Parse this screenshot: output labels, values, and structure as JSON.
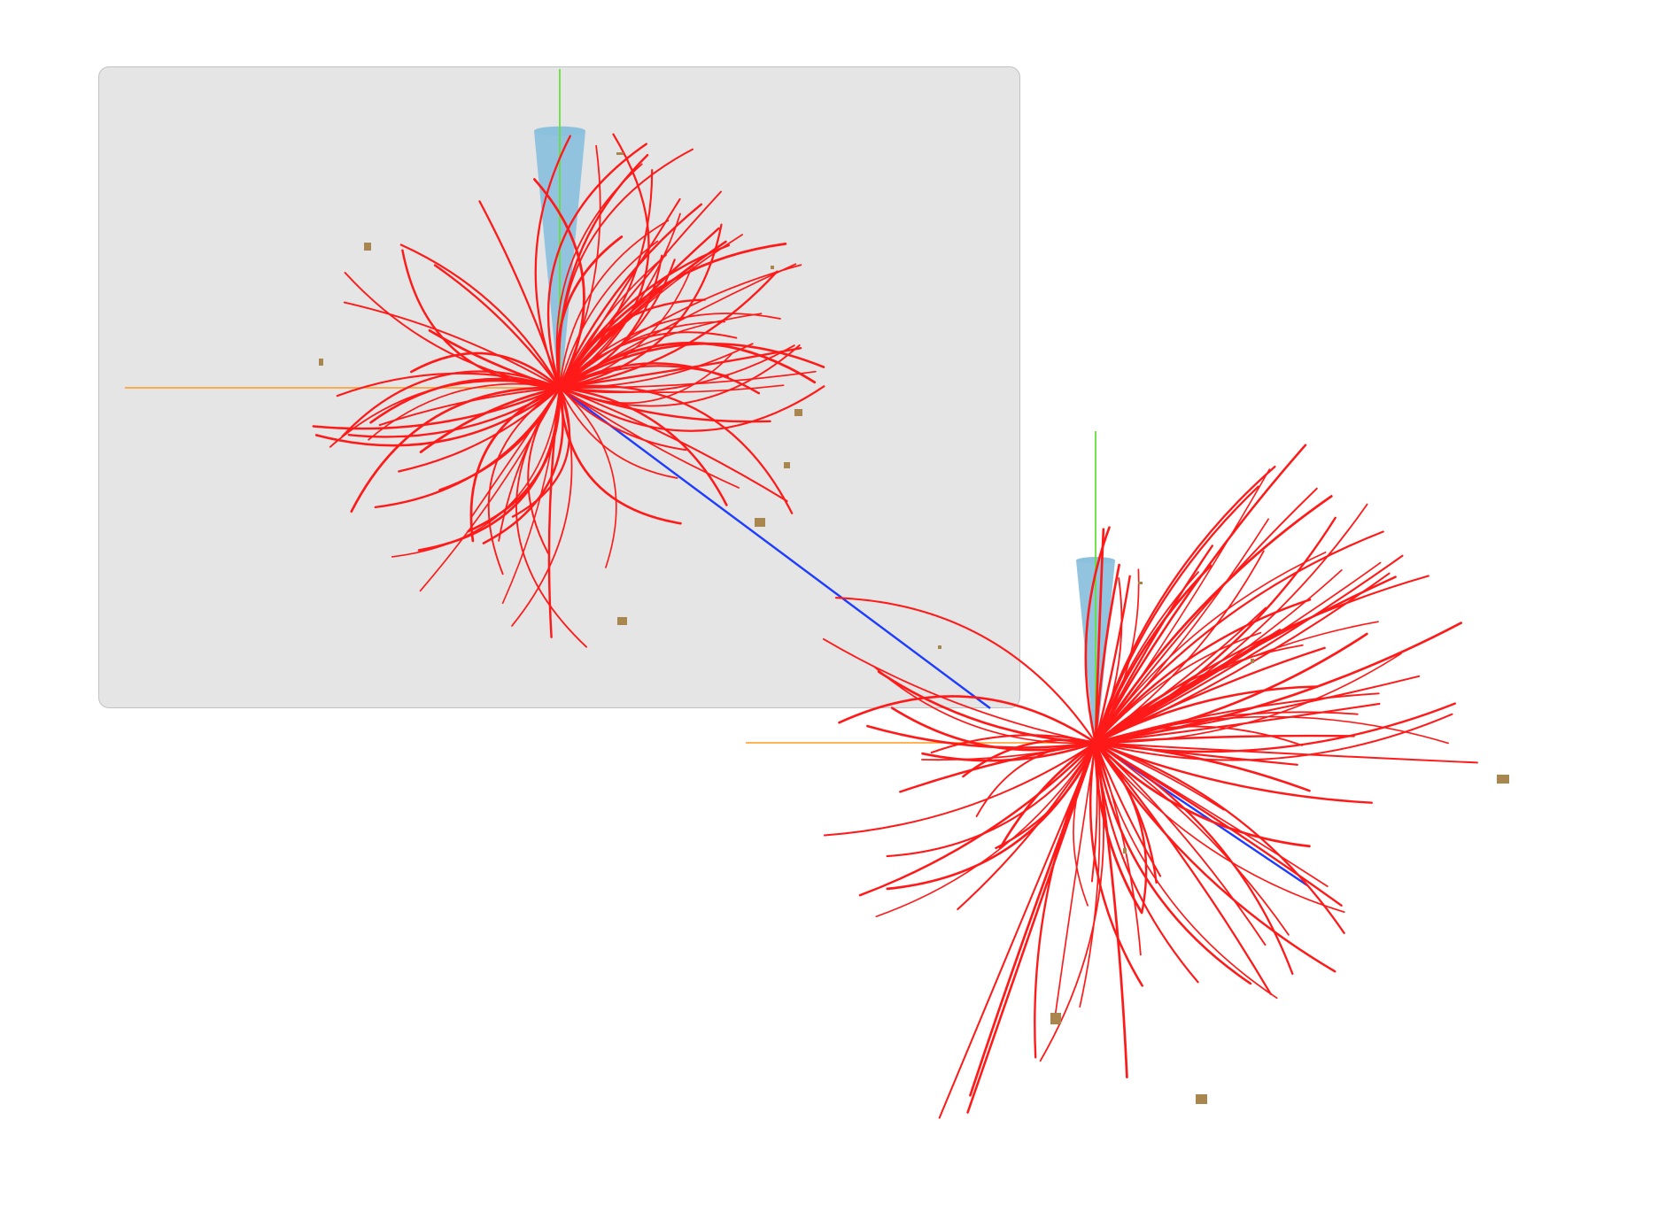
{
  "views": [
    {
      "id": "zoomed",
      "framed": true,
      "panel_color": "#e5e5e5"
    },
    {
      "id": "full",
      "framed": false
    }
  ],
  "colors": {
    "track": "#ff1a1a",
    "x_axis": "#ff9a1f",
    "y_axis": "#66e03a",
    "z_axis": "#1e3cff",
    "cone": "#8cc1de",
    "energy_deposit": "#a8864e",
    "background": "#ffffff"
  },
  "icons": [
    "event-display-icon"
  ]
}
